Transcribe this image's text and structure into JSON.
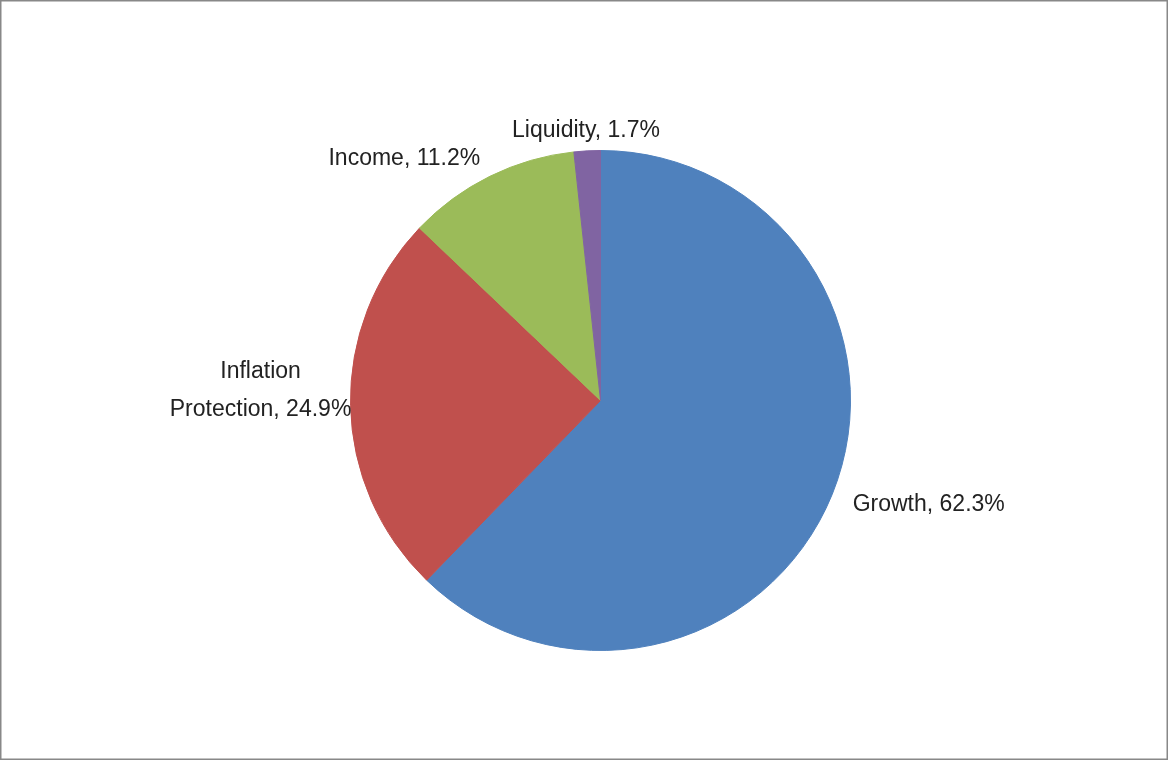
{
  "chart_data": {
    "type": "pie",
    "categories": [
      "Growth",
      "Inflation Protection",
      "Income",
      "Liquidity"
    ],
    "values": [
      62.3,
      24.9,
      11.2,
      1.7
    ],
    "colors": [
      "#4f81bd",
      "#c0504d",
      "#9bbb59",
      "#8064a2"
    ],
    "value_labels": [
      "62.3%",
      "24.9%",
      "11.2%",
      "1.7%"
    ]
  }
}
